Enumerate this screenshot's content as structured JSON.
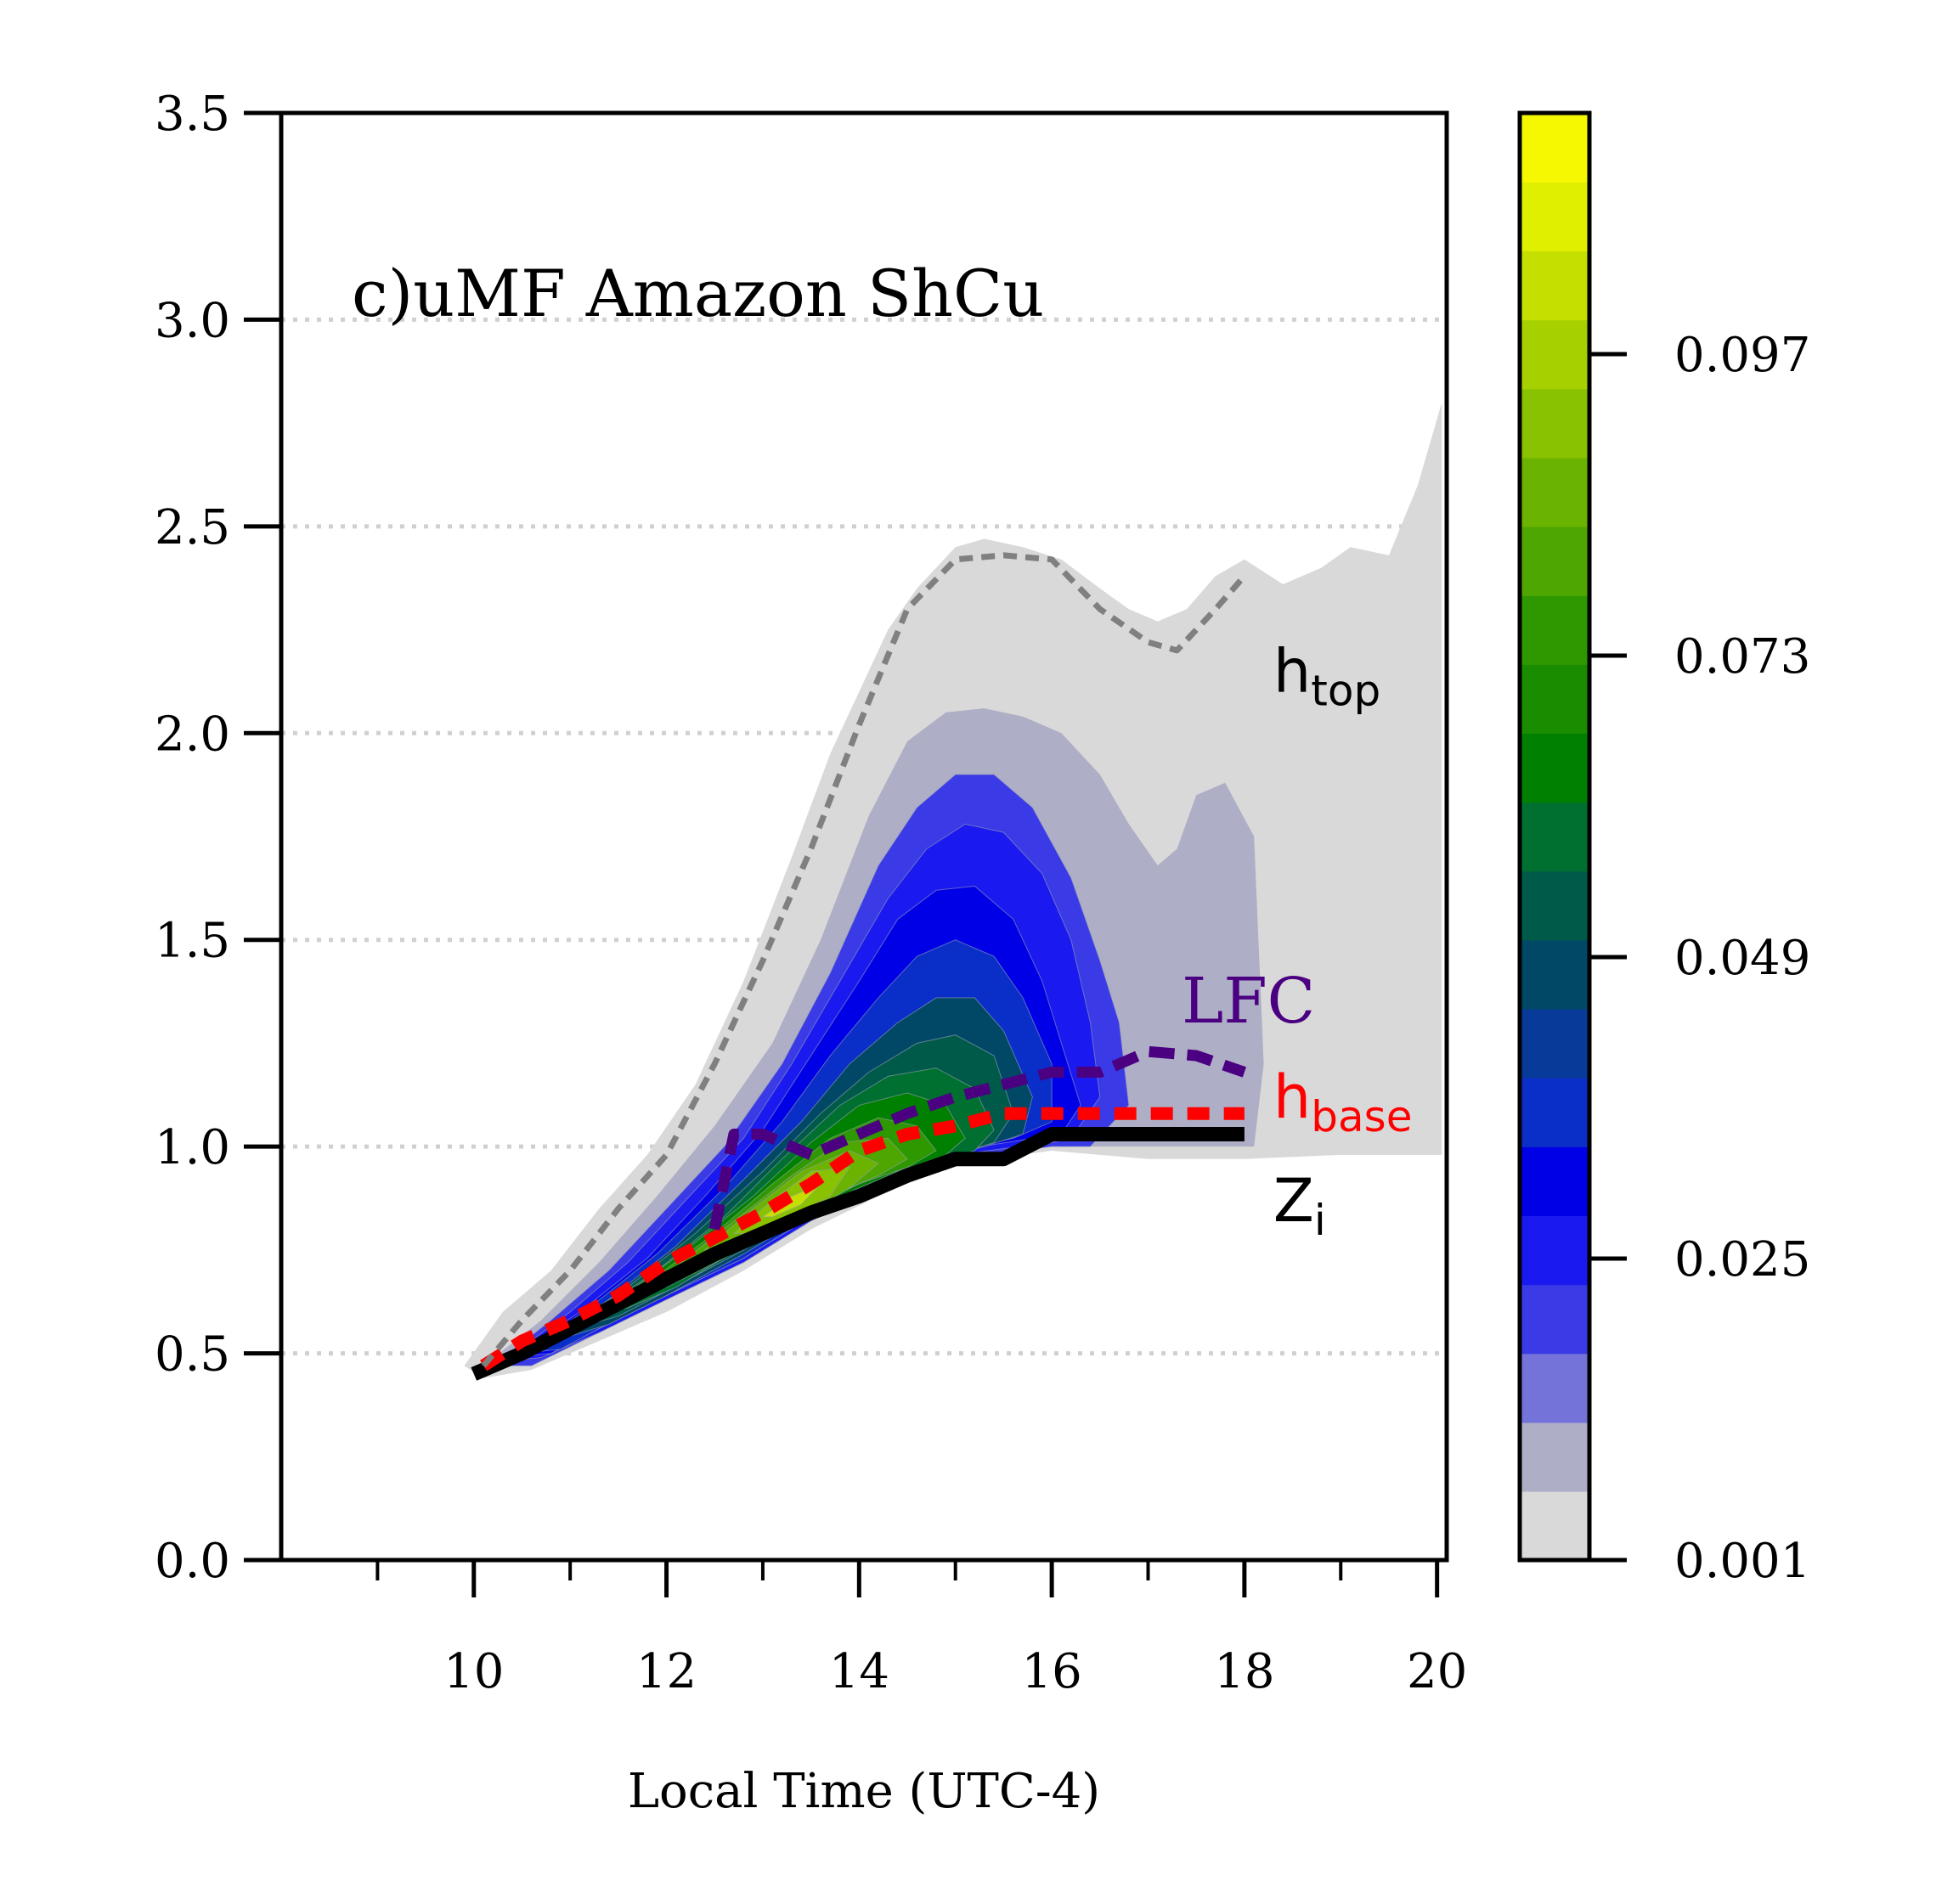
{
  "chart_data": {
    "type": "heatmap",
    "panel_label": "c)uMF Amazon ShCu",
    "xlabel": "Local Time (UTC-4)",
    "ylabel": "",
    "xlim": [
      8,
      20.1
    ],
    "ylim": [
      0,
      3.5
    ],
    "x_ticks": [
      "10",
      "12",
      "14",
      "16",
      "18",
      "20"
    ],
    "y_ticks": [
      "0.0",
      "0.5",
      "1.0",
      "1.5",
      "2.0",
      "2.5",
      "3.0",
      "3.5"
    ],
    "grid": "horizontal dotted",
    "colorbar": {
      "ticks": [
        "0.001",
        "0.025",
        "0.049",
        "0.073",
        "0.097"
      ],
      "tick_values": [
        0.001,
        0.025,
        0.049,
        0.073,
        0.097
      ],
      "min": 0.001,
      "max": 0.1162,
      "step": 0.0048,
      "colors": [
        "#d9d9d9",
        "#aeaec6",
        "#7373d9",
        "#3a3ae6",
        "#1a1af0",
        "#0000e6",
        "#0a2ec8",
        "#083a9a",
        "#004866",
        "#005a4a",
        "#007030",
        "#008000",
        "#1a8c00",
        "#2d9800",
        "#4ea600",
        "#6ab300",
        "#88c200",
        "#a6d000",
        "#c4df00",
        "#e0ee00",
        "#f5f800"
      ]
    },
    "contours": [
      {
        "level": 0.001,
        "x": [
          9.9,
          10.3,
          10.8,
          11.3,
          11.8,
          12.3,
          12.8,
          13.3,
          13.7,
          14.0,
          14.3,
          14.6,
          15.0,
          15.3,
          15.7,
          16.1,
          16.5,
          16.8,
          17.1,
          17.4,
          17.7,
          18.0,
          18.4,
          18.8,
          19.1,
          19.5,
          19.8,
          20.05,
          20.05,
          19.0,
          18.0,
          17.0,
          16.0,
          15.0,
          14.2,
          13.5,
          12.8,
          12.0,
          11.3,
          10.6,
          10.1
        ],
        "y": [
          0.47,
          0.6,
          0.7,
          0.85,
          0.98,
          1.15,
          1.4,
          1.7,
          1.95,
          2.1,
          2.25,
          2.35,
          2.45,
          2.47,
          2.45,
          2.42,
          2.35,
          2.3,
          2.27,
          2.3,
          2.38,
          2.42,
          2.36,
          2.4,
          2.45,
          2.43,
          2.6,
          2.8,
          0.98,
          0.98,
          0.97,
          0.97,
          0.99,
          0.96,
          0.88,
          0.8,
          0.7,
          0.6,
          0.53,
          0.46,
          0.44
        ]
      },
      {
        "level": 0.007,
        "x": [
          10.1,
          10.7,
          11.3,
          11.9,
          12.5,
          13.1,
          13.6,
          14.1,
          14.5,
          14.9,
          15.3,
          15.7,
          16.1,
          16.5,
          16.8,
          17.1,
          17.3,
          17.5,
          17.8,
          18.1,
          18.2,
          18.1,
          17.0,
          16.0,
          15.0,
          14.2,
          13.5,
          12.8,
          12.0,
          11.3,
          10.6
        ],
        "y": [
          0.47,
          0.58,
          0.72,
          0.88,
          1.05,
          1.25,
          1.5,
          1.8,
          1.98,
          2.05,
          2.06,
          2.04,
          2.0,
          1.9,
          1.78,
          1.68,
          1.72,
          1.85,
          1.88,
          1.75,
          1.2,
          1.0,
          1.0,
          1.0,
          0.97,
          0.9,
          0.82,
          0.72,
          0.63,
          0.55,
          0.47
        ]
      },
      {
        "level": 0.013,
        "x": [
          10.2,
          10.8,
          11.4,
          12.0,
          12.6,
          13.2,
          13.7,
          14.2,
          14.6,
          15.0,
          15.4,
          15.8,
          16.2,
          16.5,
          16.7,
          16.8,
          16.4,
          16.0,
          15.0,
          14.2,
          13.5,
          12.8,
          12.0,
          11.3,
          10.6
        ],
        "y": [
          0.47,
          0.58,
          0.7,
          0.85,
          1.0,
          1.2,
          1.42,
          1.68,
          1.82,
          1.9,
          1.9,
          1.82,
          1.65,
          1.45,
          1.3,
          1.1,
          1.0,
          1.0,
          0.97,
          0.9,
          0.82,
          0.72,
          0.63,
          0.55,
          0.47
        ]
      },
      {
        "level": 0.019,
        "x": [
          10.3,
          11.0,
          11.6,
          12.2,
          12.8,
          13.3,
          13.8,
          14.3,
          14.7,
          15.1,
          15.5,
          15.9,
          16.2,
          16.4,
          16.5,
          16.2,
          16.0,
          15.0,
          14.2,
          13.5,
          12.8,
          12.0,
          11.3,
          10.7
        ],
        "y": [
          0.48,
          0.6,
          0.72,
          0.87,
          1.02,
          1.2,
          1.4,
          1.6,
          1.72,
          1.78,
          1.76,
          1.66,
          1.5,
          1.3,
          1.12,
          1.02,
          1.01,
          0.98,
          0.9,
          0.82,
          0.72,
          0.63,
          0.55,
          0.49
        ]
      },
      {
        "level": 0.025,
        "x": [
          10.4,
          11.1,
          11.8,
          12.4,
          13.0,
          13.5,
          14.0,
          14.4,
          14.8,
          15.2,
          15.6,
          15.9,
          16.1,
          16.3,
          16.1,
          15.8,
          15.0,
          14.2,
          13.5,
          12.8,
          12.0,
          11.3,
          10.8
        ],
        "y": [
          0.49,
          0.6,
          0.73,
          0.88,
          1.04,
          1.22,
          1.4,
          1.55,
          1.62,
          1.63,
          1.55,
          1.4,
          1.25,
          1.1,
          1.03,
          1.02,
          0.99,
          0.91,
          0.83,
          0.73,
          0.64,
          0.56,
          0.5
        ]
      },
      {
        "level": 0.031,
        "x": [
          10.5,
          11.2,
          11.9,
          12.6,
          13.2,
          13.7,
          14.2,
          14.6,
          15.0,
          15.4,
          15.7,
          16.0,
          16.0,
          15.6,
          15.0,
          14.2,
          13.5,
          12.8,
          12.0,
          11.3,
          10.9
        ],
        "y": [
          0.5,
          0.61,
          0.74,
          0.9,
          1.06,
          1.22,
          1.36,
          1.46,
          1.5,
          1.46,
          1.36,
          1.2,
          1.06,
          1.02,
          0.99,
          0.91,
          0.83,
          0.73,
          0.64,
          0.56,
          0.51
        ]
      },
      {
        "level": 0.037,
        "x": [
          10.7,
          11.4,
          12.1,
          12.8,
          13.4,
          13.9,
          14.4,
          14.8,
          15.2,
          15.5,
          15.8,
          15.7,
          15.3,
          14.8,
          14.2,
          13.5,
          12.8,
          12.0,
          11.4
        ],
        "y": [
          0.52,
          0.63,
          0.76,
          0.92,
          1.06,
          1.2,
          1.3,
          1.36,
          1.36,
          1.28,
          1.12,
          1.03,
          1.0,
          0.97,
          0.92,
          0.84,
          0.74,
          0.64,
          0.57
        ]
      },
      {
        "level": 0.043,
        "x": [
          10.9,
          11.6,
          12.3,
          13.0,
          13.6,
          14.1,
          14.6,
          15.0,
          15.4,
          15.6,
          15.4,
          15.0,
          14.5,
          14.0,
          13.5,
          12.8,
          12.0,
          11.5
        ],
        "y": [
          0.55,
          0.66,
          0.79,
          0.94,
          1.08,
          1.18,
          1.25,
          1.27,
          1.22,
          1.08,
          1.01,
          0.98,
          0.95,
          0.9,
          0.84,
          0.75,
          0.65,
          0.59
        ]
      },
      {
        "level": 0.049,
        "x": [
          11.2,
          11.9,
          12.6,
          13.2,
          13.8,
          14.3,
          14.8,
          15.2,
          15.4,
          15.2,
          14.7,
          14.1,
          13.5,
          12.8,
          12.1,
          11.6
        ],
        "y": [
          0.59,
          0.7,
          0.83,
          0.97,
          1.1,
          1.17,
          1.19,
          1.14,
          1.04,
          0.99,
          0.96,
          0.91,
          0.85,
          0.76,
          0.66,
          0.61
        ]
      },
      {
        "level": 0.055,
        "x": [
          11.5,
          12.2,
          12.9,
          13.5,
          14.0,
          14.5,
          14.9,
          15.1,
          14.9,
          14.4,
          13.8,
          13.2,
          12.6,
          12.0
        ],
        "y": [
          0.63,
          0.75,
          0.88,
          1.01,
          1.1,
          1.13,
          1.1,
          1.02,
          0.98,
          0.94,
          0.88,
          0.81,
          0.73,
          0.66
        ]
      },
      {
        "level": 0.061,
        "x": [
          11.8,
          12.5,
          13.1,
          13.7,
          14.2,
          14.6,
          14.8,
          14.5,
          14.0,
          13.4,
          12.8,
          12.2
        ],
        "y": [
          0.67,
          0.79,
          0.91,
          1.02,
          1.07,
          1.05,
          0.99,
          0.95,
          0.91,
          0.84,
          0.76,
          0.69
        ]
      },
      {
        "level": 0.067,
        "x": [
          12.1,
          12.7,
          13.3,
          13.8,
          14.3,
          14.5,
          14.2,
          13.7,
          13.1,
          12.5
        ],
        "y": [
          0.71,
          0.82,
          0.93,
          1.01,
          1.02,
          0.97,
          0.93,
          0.88,
          0.81,
          0.73
        ]
      },
      {
        "level": 0.073,
        "x": [
          12.4,
          12.9,
          13.4,
          13.9,
          14.2,
          13.9,
          13.4,
          12.9
        ],
        "y": [
          0.75,
          0.85,
          0.94,
          0.99,
          0.96,
          0.9,
          0.83,
          0.77
        ]
      },
      {
        "level": 0.079,
        "x": [
          12.7,
          13.1,
          13.5,
          13.9,
          13.7,
          13.2,
          12.9
        ],
        "y": [
          0.79,
          0.87,
          0.94,
          0.95,
          0.88,
          0.82,
          0.79
        ]
      },
      {
        "level": 0.085,
        "x": [
          13.0,
          13.3,
          13.6,
          13.4,
          13.1
        ],
        "y": [
          0.83,
          0.88,
          0.91,
          0.86,
          0.83
        ]
      }
    ],
    "series": [
      {
        "name": "Z_i",
        "x": [
          10.0,
          10.5,
          11.0,
          11.5,
          12.0,
          12.5,
          13.0,
          13.5,
          14.0,
          14.5,
          15.0,
          15.5,
          16.0,
          16.5,
          17.0,
          17.5,
          18.0
        ],
        "y": [
          0.45,
          0.5,
          0.56,
          0.62,
          0.68,
          0.74,
          0.79,
          0.84,
          0.88,
          0.93,
          0.97,
          0.97,
          1.03,
          1.03,
          1.03,
          1.03,
          1.03
        ],
        "color": "#000000"
      },
      {
        "name": "h_base",
        "x": [
          10.1,
          10.5,
          11.0,
          11.5,
          12.0,
          12.5,
          13.0,
          13.5,
          14.0,
          14.5,
          15.0,
          15.5,
          16.0,
          16.5,
          17.0,
          17.5,
          18.0
        ],
        "y": [
          0.47,
          0.53,
          0.58,
          0.64,
          0.72,
          0.78,
          0.84,
          0.91,
          0.99,
          1.03,
          1.05,
          1.08,
          1.08,
          1.08,
          1.08,
          1.08,
          1.08
        ],
        "color": "#ff0000"
      },
      {
        "name": "LFC",
        "x": [
          12.5,
          12.7,
          13.0,
          13.5,
          14.0,
          14.5,
          15.0,
          15.5,
          16.0,
          16.5,
          17.0,
          17.5,
          18.0
        ],
        "y": [
          0.8,
          1.03,
          1.03,
          0.98,
          1.03,
          1.08,
          1.12,
          1.15,
          1.18,
          1.18,
          1.23,
          1.22,
          1.18
        ],
        "color": "#4b0082"
      },
      {
        "name": "h_top",
        "x": [
          10.1,
          10.5,
          11.0,
          11.5,
          12.0,
          12.5,
          13.0,
          13.5,
          14.0,
          14.5,
          15.0,
          15.5,
          16.0,
          16.5,
          17.0,
          17.3,
          17.7,
          18.0
        ],
        "y": [
          0.47,
          0.58,
          0.7,
          0.85,
          0.98,
          1.2,
          1.45,
          1.72,
          2.02,
          2.3,
          2.42,
          2.43,
          2.42,
          2.3,
          2.22,
          2.2,
          2.3,
          2.38
        ],
        "color": "#808080"
      }
    ],
    "line_labels": {
      "h_top": {
        "main": "h",
        "sub": "top",
        "color": "#000000"
      },
      "LFC": {
        "main": "LFC",
        "sub": "",
        "color": "#4b0082"
      },
      "h_base": {
        "main": "h",
        "sub": "base",
        "color": "#ff0000"
      },
      "Z_i": {
        "main": "Z",
        "sub": "i",
        "color": "#000000"
      }
    }
  }
}
